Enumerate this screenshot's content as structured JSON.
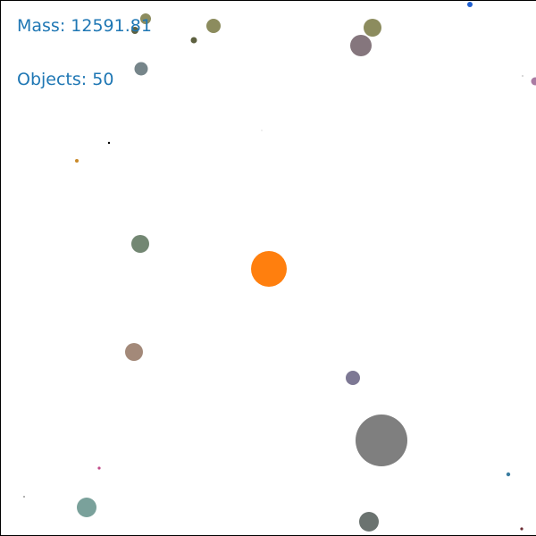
{
  "hud": {
    "mass_prefix": "Mass: ",
    "mass_value": "12591.81",
    "objects_prefix": "Objects: ",
    "objects_value": "50"
  },
  "body_colors": {
    "sun": "#ff7f0e",
    "giant": "#7f7f7f",
    "olive": "#8c8c5e",
    "olive_dark": "#5e6140",
    "mauve": "#85767d",
    "slate": "#76858a",
    "sage": "#738773",
    "tan": "#a38979",
    "lavender": "#7d7894",
    "teal": "#7aa19b",
    "charcoal": "#6b7370",
    "blue": "#1f5fd0",
    "orchid": "#a97ba3",
    "amber": "#c98a2a",
    "pink": "#c24d8a",
    "steel": "#3a7ca0",
    "maroon": "#6b2b33"
  }
}
